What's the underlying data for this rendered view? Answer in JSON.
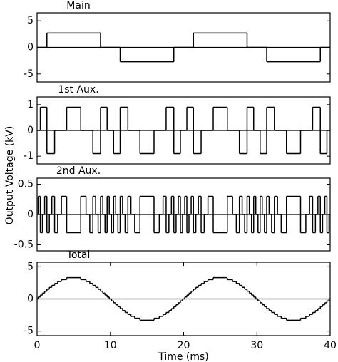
{
  "y_label": "Output Voltage (kV)",
  "chart_data": [
    {
      "type": "step",
      "title": "Main",
      "color": "#000000",
      "hline": 0,
      "xlim": [
        0,
        40
      ],
      "ylim": [
        -6.5,
        6.5
      ],
      "yticks": [
        -5,
        0,
        5
      ],
      "x": [
        0,
        1.34,
        8.66,
        11.34,
        18.66,
        21.34,
        28.66,
        31.34,
        38.66
      ],
      "values": [
        0,
        2.7,
        0,
        -2.7,
        0,
        2.7,
        0,
        -2.7,
        0
      ]
    },
    {
      "type": "step",
      "title": "1st Aux.",
      "color": "#000000",
      "hline": 0,
      "xlim": [
        0,
        40
      ],
      "ylim": [
        -1.3,
        1.3
      ],
      "yticks": [
        -1,
        0,
        1
      ],
      "x": [
        0,
        0.44,
        1.34,
        2.39,
        4.04,
        5.96,
        7.61,
        8.66,
        9.56,
        10.44,
        11.34,
        12.39,
        14.04,
        15.96,
        17.61,
        18.66,
        19.56,
        20.44,
        21.34,
        22.39,
        24.04,
        25.96,
        27.61,
        28.66,
        29.56,
        30.44,
        31.34,
        32.39,
        34.04,
        35.96,
        37.61,
        38.66,
        39.56
      ],
      "values": [
        0,
        0.9,
        -0.9,
        0,
        0.9,
        0,
        -0.9,
        0.9,
        0,
        -0.9,
        0.9,
        0,
        -0.9,
        0,
        0.9,
        -0.9,
        0,
        0.9,
        -0.9,
        0,
        0.9,
        0,
        -0.9,
        0.9,
        0,
        -0.9,
        0.9,
        0,
        -0.9,
        0,
        0.9,
        -0.9,
        0
      ]
    },
    {
      "type": "step",
      "title": "2nd Aux.",
      "color": "#000000",
      "hline": 0,
      "xlim": [
        0,
        40
      ],
      "ylim": [
        -0.6,
        0.6
      ],
      "yticks": [
        -0.5,
        0,
        0.5
      ],
      "x": [
        0,
        0.15,
        0.44,
        0.73,
        1.03,
        1.34,
        1.67,
        2.01,
        2.39,
        2.81,
        3.32,
        4.04,
        5.96,
        6.68,
        7.19,
        7.61,
        7.99,
        8.33,
        8.66,
        8.97,
        9.27,
        9.56,
        9.85,
        10.15,
        10.44,
        10.73,
        11.03,
        11.34,
        11.67,
        12.01,
        12.39,
        12.81,
        13.32,
        14.04,
        15.96,
        16.68,
        17.19,
        17.61,
        17.99,
        18.33,
        18.66,
        18.97,
        19.27,
        19.56,
        19.85,
        20.15,
        20.44,
        20.73,
        21.03,
        21.34,
        21.67,
        22.01,
        22.39,
        22.81,
        23.32,
        24.04,
        25.96,
        26.68,
        27.19,
        27.61,
        27.99,
        28.33,
        28.66,
        28.97,
        29.27,
        29.56,
        29.85,
        30.15,
        30.44,
        30.73,
        31.03,
        31.34,
        31.67,
        32.01,
        32.39,
        32.81,
        33.32,
        34.04,
        35.96,
        36.68,
        37.19,
        37.61,
        37.99,
        38.33,
        38.66,
        38.97,
        39.27,
        39.56,
        39.85
      ],
      "values": [
        0,
        0.3,
        -0.3,
        0,
        0.3,
        -0.3,
        0,
        0.3,
        -0.3,
        0,
        0.3,
        -0.3,
        0.3,
        0,
        -0.3,
        0.3,
        0,
        -0.3,
        0.3,
        0,
        -0.3,
        0.3,
        0,
        -0.3,
        0.3,
        0,
        -0.3,
        0.3,
        0,
        -0.3,
        0.3,
        0,
        -0.3,
        0.3,
        -0.3,
        0,
        0.3,
        -0.3,
        0,
        0.3,
        -0.3,
        0,
        0.3,
        -0.3,
        0,
        0.3,
        -0.3,
        0,
        0.3,
        -0.3,
        0,
        0.3,
        -0.3,
        0,
        0.3,
        -0.3,
        0.3,
        0,
        -0.3,
        0.3,
        0,
        -0.3,
        0.3,
        0,
        -0.3,
        0.3,
        0,
        -0.3,
        0.3,
        0,
        -0.3,
        0.3,
        0,
        -0.3,
        0.3,
        0,
        -0.3,
        0.3,
        -0.3,
        0,
        0.3,
        -0.3,
        0,
        0.3,
        -0.3,
        0,
        0.3,
        -0.3,
        0
      ]
    },
    {
      "type": "step",
      "title": "Total",
      "color": "#000000",
      "hline": 0,
      "xlabel": "Time (ms)",
      "xlim": [
        0,
        40
      ],
      "xticks": [
        0,
        10,
        20,
        30,
        40
      ],
      "ylim": [
        -5.7,
        5.7
      ],
      "yticks": [
        -5,
        0,
        5
      ],
      "x": [
        0,
        0.15,
        0.44,
        0.73,
        1.03,
        1.34,
        1.67,
        2.01,
        2.39,
        2.81,
        3.32,
        4.04,
        5.96,
        6.68,
        7.19,
        7.61,
        7.99,
        8.33,
        8.66,
        8.97,
        9.27,
        9.56,
        9.85,
        10.15,
        10.44,
        10.73,
        11.03,
        11.34,
        11.67,
        12.01,
        12.39,
        12.81,
        13.32,
        14.04,
        15.96,
        16.68,
        17.19,
        17.61,
        17.99,
        18.33,
        18.66,
        18.97,
        19.27,
        19.56,
        19.85,
        20.15,
        20.44,
        20.73,
        21.03,
        21.34,
        21.67,
        22.01,
        22.39,
        22.81,
        23.32,
        24.04,
        25.96,
        26.68,
        27.19,
        27.61,
        27.99,
        28.33,
        28.66,
        28.97,
        29.27,
        29.56,
        29.85,
        30.15,
        30.44,
        30.73,
        31.03,
        31.34,
        31.67,
        32.01,
        32.39,
        32.81,
        33.32,
        34.04,
        35.96,
        36.68,
        37.19,
        37.61,
        37.99,
        38.33,
        38.66,
        38.97,
        39.27,
        39.56,
        39.85
      ],
      "values": [
        0,
        0.3,
        0.6,
        0.9,
        1.2,
        1.5,
        1.8,
        2.1,
        2.4,
        2.7,
        3,
        3.3,
        3,
        2.7,
        2.4,
        2.1,
        1.8,
        1.5,
        1.2,
        0.9,
        0.6,
        0.3,
        0,
        -0.3,
        -0.6,
        -0.9,
        -1.2,
        -1.5,
        -1.8,
        -2.1,
        -2.4,
        -2.7,
        -3,
        -3.3,
        -3,
        -2.7,
        -2.4,
        -2.1,
        -1.8,
        -1.5,
        -1.2,
        -0.9,
        -0.6,
        -0.3,
        0,
        0.3,
        0.6,
        0.9,
        1.2,
        1.5,
        1.8,
        2.1,
        2.4,
        2.7,
        3,
        3.3,
        3,
        2.7,
        2.4,
        2.1,
        1.8,
        1.5,
        1.2,
        0.9,
        0.6,
        0.3,
        0,
        -0.3,
        -0.6,
        -0.9,
        -1.2,
        -1.5,
        -1.8,
        -2.1,
        -2.4,
        -2.7,
        -3,
        -3.3,
        -3,
        -2.7,
        -2.4,
        -2.1,
        -1.8,
        -1.5,
        -1.2,
        -0.9,
        -0.6,
        -0.3,
        0
      ]
    }
  ]
}
